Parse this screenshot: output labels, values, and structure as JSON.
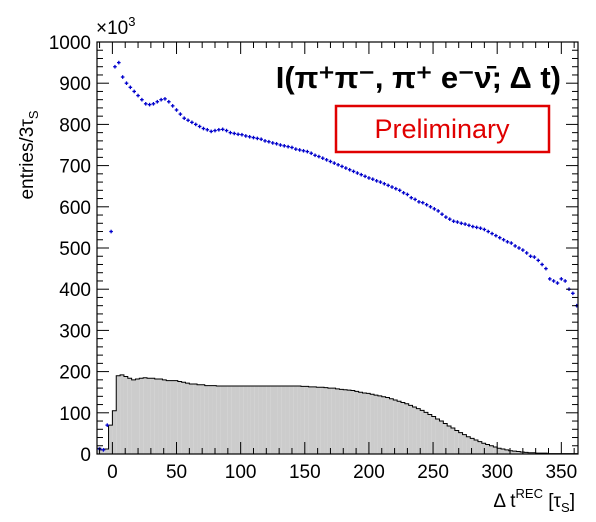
{
  "chart_data": {
    "type": "scatter",
    "title": "I(π⁺π⁻, π⁺ e⁻ν̄; Δ t)",
    "annotation": "Preliminary",
    "annotation_color": "#e00000",
    "xlabel": "Δ t^REC [τ_S]",
    "xlabel_parts": {
      "main": "Δ t",
      "sup": "REC",
      "bracket_open": " [τ",
      "sub": "S",
      "bracket_close": "]"
    },
    "ylabel": "entries/3τ_S",
    "ylabel_parts": {
      "main": "entries/3τ",
      "sub": "S"
    },
    "y_multiplier": "×10³",
    "y_multiplier_parts": {
      "base": "×10",
      "exp": "3"
    },
    "xlim": [
      -12,
      363
    ],
    "ylim": [
      0,
      1000
    ],
    "x_ticks": [
      0,
      50,
      100,
      150,
      200,
      250,
      300,
      350
    ],
    "y_ticks": [
      0,
      100,
      200,
      300,
      400,
      500,
      600,
      700,
      800,
      900,
      1000
    ],
    "grid": false,
    "series": [
      {
        "kind": "points",
        "color": "#0000cc",
        "points": [
          [
            -10,
            12
          ],
          [
            -7,
            10
          ],
          [
            -4,
            70
          ],
          [
            -1,
            540
          ],
          [
            2,
            940
          ],
          [
            5,
            950
          ],
          [
            8,
            915
          ],
          [
            11,
            900
          ],
          [
            14,
            890
          ],
          [
            17,
            880
          ],
          [
            20,
            870
          ],
          [
            23,
            860
          ],
          [
            26,
            850
          ],
          [
            29,
            848
          ],
          [
            32,
            850
          ],
          [
            35,
            855
          ],
          [
            38,
            860
          ],
          [
            41,
            862
          ],
          [
            44,
            855
          ],
          [
            47,
            845
          ],
          [
            50,
            835
          ],
          [
            53,
            825
          ],
          [
            56,
            815
          ],
          [
            59,
            810
          ],
          [
            62,
            805
          ],
          [
            65,
            800
          ],
          [
            68,
            795
          ],
          [
            71,
            790
          ],
          [
            74,
            787
          ],
          [
            77,
            783
          ],
          [
            80,
            785
          ],
          [
            83,
            787
          ],
          [
            86,
            788
          ],
          [
            89,
            785
          ],
          [
            92,
            780
          ],
          [
            95,
            778
          ],
          [
            98,
            776
          ],
          [
            101,
            775
          ],
          [
            104,
            772
          ],
          [
            107,
            770
          ],
          [
            110,
            768
          ],
          [
            113,
            766
          ],
          [
            116,
            764
          ],
          [
            119,
            760
          ],
          [
            122,
            758
          ],
          [
            125,
            755
          ],
          [
            128,
            753
          ],
          [
            131,
            750
          ],
          [
            134,
            748
          ],
          [
            137,
            746
          ],
          [
            140,
            744
          ],
          [
            143,
            740
          ],
          [
            146,
            738
          ],
          [
            149,
            736
          ],
          [
            152,
            734
          ],
          [
            155,
            730
          ],
          [
            158,
            725
          ],
          [
            161,
            722
          ],
          [
            164,
            718
          ],
          [
            167,
            714
          ],
          [
            170,
            710
          ],
          [
            173,
            706
          ],
          [
            176,
            702
          ],
          [
            179,
            698
          ],
          [
            182,
            694
          ],
          [
            185,
            690
          ],
          [
            188,
            686
          ],
          [
            191,
            682
          ],
          [
            194,
            678
          ],
          [
            197,
            674
          ],
          [
            200,
            670
          ],
          [
            203,
            667
          ],
          [
            206,
            663
          ],
          [
            209,
            660
          ],
          [
            212,
            656
          ],
          [
            215,
            652
          ],
          [
            218,
            648
          ],
          [
            221,
            644
          ],
          [
            224,
            640
          ],
          [
            227,
            634
          ],
          [
            230,
            630
          ],
          [
            233,
            622
          ],
          [
            236,
            618
          ],
          [
            239,
            612
          ],
          [
            242,
            610
          ],
          [
            245,
            605
          ],
          [
            248,
            600
          ],
          [
            251,
            595
          ],
          [
            254,
            590
          ],
          [
            257,
            582
          ],
          [
            260,
            575
          ],
          [
            263,
            570
          ],
          [
            266,
            565
          ],
          [
            269,
            563
          ],
          [
            272,
            560
          ],
          [
            275,
            558
          ],
          [
            278,
            555
          ],
          [
            281,
            552
          ],
          [
            284,
            550
          ],
          [
            287,
            548
          ],
          [
            290,
            545
          ],
          [
            293,
            540
          ],
          [
            296,
            535
          ],
          [
            299,
            530
          ],
          [
            302,
            525
          ],
          [
            305,
            520
          ],
          [
            308,
            515
          ],
          [
            311,
            512
          ],
          [
            314,
            505
          ],
          [
            317,
            500
          ],
          [
            320,
            495
          ],
          [
            323,
            488
          ],
          [
            326,
            480
          ],
          [
            329,
            478
          ],
          [
            332,
            470
          ],
          [
            335,
            460
          ],
          [
            338,
            450
          ],
          [
            341,
            425
          ],
          [
            344,
            420
          ],
          [
            347,
            415
          ],
          [
            350,
            425
          ],
          [
            353,
            420
          ],
          [
            356,
            400
          ],
          [
            359,
            390
          ],
          [
            362,
            360
          ]
        ]
      },
      {
        "kind": "filled-histogram",
        "color": "#cccccc",
        "edge_color": "#000000",
        "bin_width": 3,
        "bins": [
          [
            -12,
            14
          ],
          [
            -9,
            10
          ],
          [
            -6,
            12
          ],
          [
            -3,
            70
          ],
          [
            0,
            105
          ],
          [
            3,
            190
          ],
          [
            6,
            192
          ],
          [
            9,
            188
          ],
          [
            12,
            184
          ],
          [
            15,
            180
          ],
          [
            18,
            182
          ],
          [
            21,
            184
          ],
          [
            24,
            185
          ],
          [
            27,
            184
          ],
          [
            30,
            184
          ],
          [
            33,
            182
          ],
          [
            36,
            182
          ],
          [
            39,
            180
          ],
          [
            42,
            178
          ],
          [
            45,
            178
          ],
          [
            48,
            178
          ],
          [
            51,
            176
          ],
          [
            54,
            174
          ],
          [
            57,
            172
          ],
          [
            60,
            170
          ],
          [
            63,
            170
          ],
          [
            66,
            168
          ],
          [
            69,
            168
          ],
          [
            72,
            166
          ],
          [
            75,
            166
          ],
          [
            78,
            166
          ],
          [
            81,
            165
          ],
          [
            84,
            165
          ],
          [
            87,
            165
          ],
          [
            90,
            165
          ],
          [
            93,
            165
          ],
          [
            96,
            165
          ],
          [
            99,
            165
          ],
          [
            102,
            165
          ],
          [
            105,
            165
          ],
          [
            108,
            165
          ],
          [
            111,
            165
          ],
          [
            114,
            165
          ],
          [
            117,
            165
          ],
          [
            120,
            165
          ],
          [
            123,
            165
          ],
          [
            126,
            165
          ],
          [
            129,
            165
          ],
          [
            132,
            165
          ],
          [
            135,
            165
          ],
          [
            138,
            165
          ],
          [
            141,
            165
          ],
          [
            144,
            165
          ],
          [
            147,
            164
          ],
          [
            150,
            164
          ],
          [
            153,
            163
          ],
          [
            156,
            163
          ],
          [
            159,
            162
          ],
          [
            162,
            162
          ],
          [
            165,
            161
          ],
          [
            168,
            160
          ],
          [
            171,
            160
          ],
          [
            174,
            158
          ],
          [
            177,
            157
          ],
          [
            180,
            156
          ],
          [
            183,
            155
          ],
          [
            186,
            154
          ],
          [
            189,
            152
          ],
          [
            192,
            150
          ],
          [
            195,
            148
          ],
          [
            198,
            147
          ],
          [
            201,
            145
          ],
          [
            204,
            143
          ],
          [
            207,
            141
          ],
          [
            210,
            139
          ],
          [
            213,
            137
          ],
          [
            216,
            134
          ],
          [
            219,
            131
          ],
          [
            222,
            128
          ],
          [
            225,
            125
          ],
          [
            228,
            122
          ],
          [
            231,
            118
          ],
          [
            234,
            114
          ],
          [
            237,
            110
          ],
          [
            240,
            106
          ],
          [
            243,
            101
          ],
          [
            246,
            96
          ],
          [
            249,
            91
          ],
          [
            252,
            85
          ],
          [
            255,
            80
          ],
          [
            258,
            74
          ],
          [
            261,
            68
          ],
          [
            264,
            63
          ],
          [
            267,
            57
          ],
          [
            270,
            52
          ],
          [
            273,
            47
          ],
          [
            276,
            42
          ],
          [
            279,
            38
          ],
          [
            282,
            34
          ],
          [
            285,
            30
          ],
          [
            288,
            26
          ],
          [
            291,
            23
          ],
          [
            294,
            20
          ],
          [
            297,
            17
          ],
          [
            300,
            14
          ],
          [
            303,
            12
          ],
          [
            306,
            10
          ],
          [
            309,
            8
          ],
          [
            312,
            7
          ],
          [
            315,
            6
          ],
          [
            318,
            5
          ],
          [
            321,
            4
          ],
          [
            324,
            3
          ],
          [
            327,
            3
          ],
          [
            330,
            2
          ],
          [
            333,
            2
          ],
          [
            336,
            2
          ],
          [
            339,
            1
          ],
          [
            342,
            1
          ],
          [
            345,
            1
          ],
          [
            348,
            1
          ],
          [
            351,
            1
          ],
          [
            354,
            1
          ],
          [
            357,
            1
          ],
          [
            360,
            1
          ]
        ]
      }
    ]
  }
}
